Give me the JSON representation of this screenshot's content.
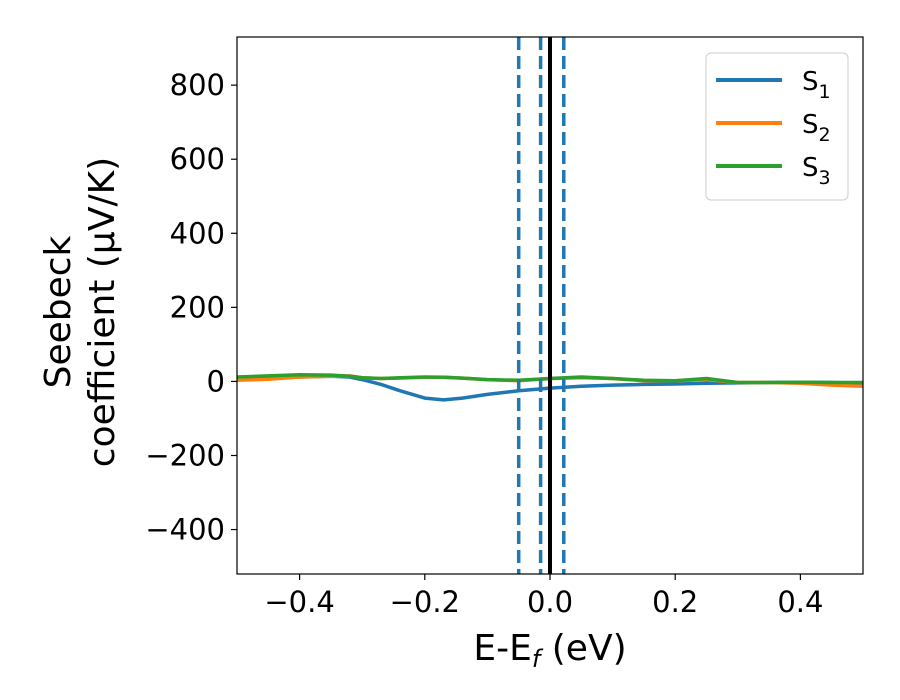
{
  "chart_data": {
    "type": "line",
    "xlabel": "E-E",
    "xlabel_sub": "f",
    "xlabel_unit": " (eV)",
    "ylabel_line1": "Seebeck",
    "ylabel_line2": "coefficient  (μV/K)",
    "xlim": [
      -0.5,
      0.5
    ],
    "ylim": [
      -520,
      930
    ],
    "xticks": [
      -0.4,
      -0.2,
      0.0,
      0.2,
      0.4
    ],
    "xtick_labels": [
      "−0.4",
      "−0.2",
      "0.0",
      "0.2",
      "0.4"
    ],
    "yticks": [
      -400,
      -200,
      0,
      200,
      400,
      600,
      800
    ],
    "ytick_labels": [
      "−400",
      "−200",
      "0",
      "200",
      "400",
      "600",
      "800"
    ],
    "grid": false,
    "legend_position": "top-right",
    "vlines": [
      {
        "x": -0.05,
        "style": "dashed",
        "color": "#1f77b4"
      },
      {
        "x": -0.015,
        "style": "dashed",
        "color": "#1f77b4"
      },
      {
        "x": 0.0,
        "style": "solid",
        "color": "#000000"
      },
      {
        "x": 0.022,
        "style": "dashed",
        "color": "#1f77b4"
      }
    ],
    "x": [
      -0.5,
      -0.45,
      -0.4,
      -0.35,
      -0.32,
      -0.3,
      -0.27,
      -0.24,
      -0.2,
      -0.17,
      -0.14,
      -0.1,
      -0.05,
      0.0,
      0.05,
      0.1,
      0.15,
      0.2,
      0.25,
      0.3,
      0.35,
      0.4,
      0.45,
      0.5
    ],
    "series": [
      {
        "name": "S",
        "sub": "1",
        "color": "#1f77b4",
        "values": [
          5,
          8,
          12,
          14,
          12,
          5,
          -8,
          -25,
          -45,
          -50,
          -45,
          -35,
          -25,
          -18,
          -13,
          -10,
          -8,
          -7,
          -5,
          -4,
          -3,
          -2,
          -3,
          -5
        ]
      },
      {
        "name": "S",
        "sub": "2",
        "color": "#ff7f0e",
        "values": [
          3,
          6,
          12,
          14,
          15,
          10,
          8,
          9,
          11,
          11,
          9,
          5,
          2,
          8,
          10,
          8,
          2,
          2,
          5,
          -3,
          -3,
          -5,
          -10,
          -13
        ]
      },
      {
        "name": "S",
        "sub": "3",
        "color": "#2ca02c",
        "values": [
          12,
          15,
          18,
          17,
          14,
          10,
          8,
          10,
          12,
          11,
          9,
          5,
          3,
          8,
          12,
          8,
          3,
          2,
          8,
          -3,
          -3,
          -2,
          -3,
          -3
        ]
      }
    ]
  }
}
